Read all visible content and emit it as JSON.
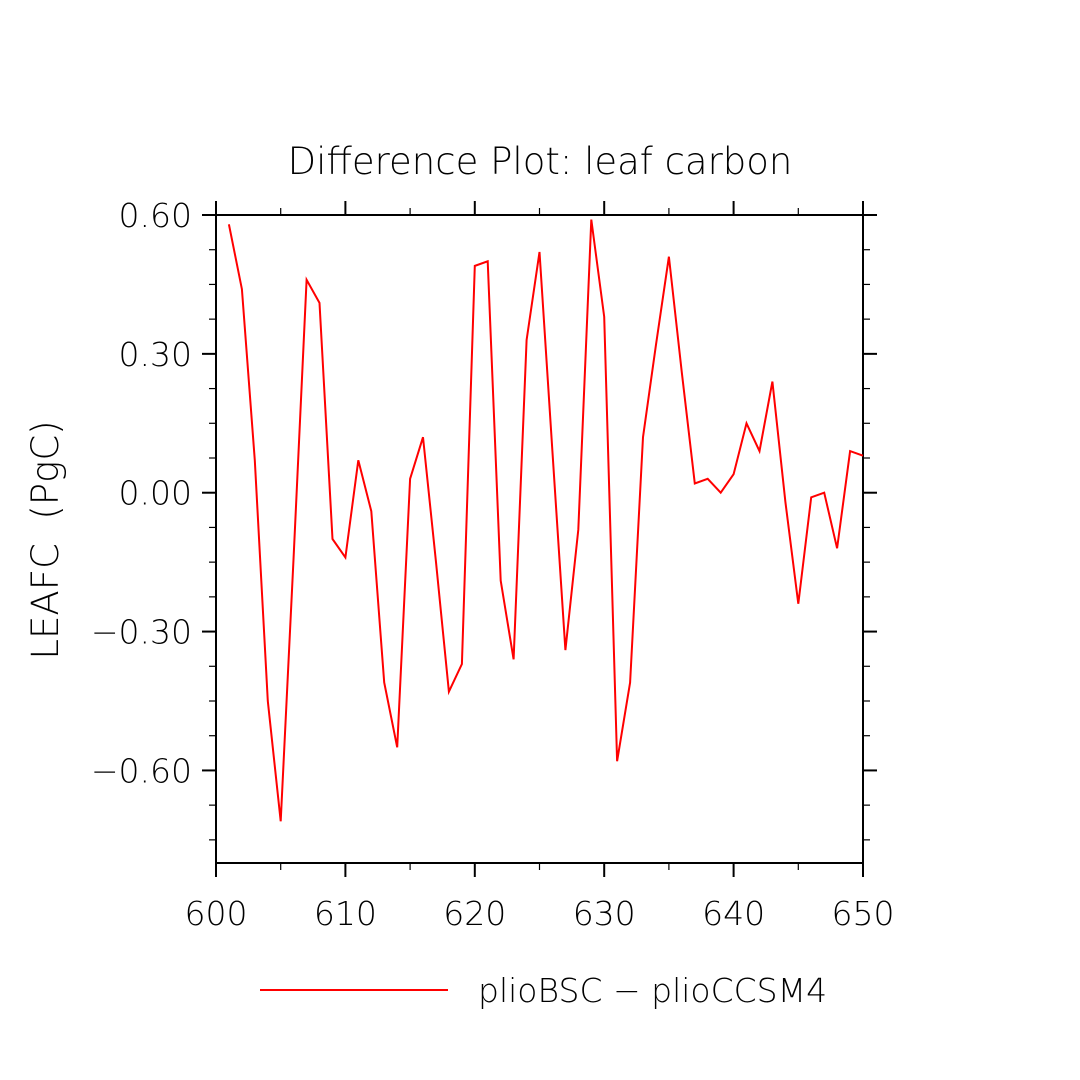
{
  "chart_data": {
    "type": "line",
    "title": "Difference Plot: leaf carbon",
    "xlabel": "",
    "ylabel": "LEAFC  (PgC)",
    "xlim": [
      600,
      650
    ],
    "ylim": [
      -0.8,
      0.6
    ],
    "x_ticks": [
      600,
      610,
      620,
      630,
      640,
      650
    ],
    "x_tick_labels": [
      "600",
      "610",
      "620",
      "630",
      "640",
      "650"
    ],
    "y_ticks": [
      0.6,
      0.3,
      0.0,
      -0.3,
      -0.6
    ],
    "y_tick_labels": [
      "0.60",
      "0.30",
      "0.00",
      "−0.30",
      "−0.60"
    ],
    "grid": false,
    "legend_position": "bottom",
    "series": [
      {
        "name": "plioBSC − plioCCSM4",
        "color": "#ff0000",
        "x": [
          601,
          602,
          603,
          604,
          605,
          606,
          607,
          608,
          609,
          610,
          611,
          612,
          613,
          614,
          615,
          616,
          617,
          618,
          619,
          620,
          621,
          622,
          623,
          624,
          625,
          626,
          627,
          628,
          629,
          630,
          631,
          632,
          633,
          634,
          635,
          636,
          637,
          638,
          639,
          640,
          641,
          642,
          643,
          644,
          645,
          646,
          647,
          648,
          649,
          650
        ],
        "y": [
          0.58,
          0.44,
          0.07,
          -0.45,
          -0.71,
          -0.14,
          0.46,
          0.41,
          -0.1,
          -0.14,
          0.07,
          -0.04,
          -0.41,
          -0.55,
          0.03,
          0.12,
          -0.15,
          -0.43,
          -0.37,
          0.49,
          0.5,
          -0.19,
          -0.36,
          0.33,
          0.52,
          0.09,
          -0.34,
          -0.08,
          0.59,
          0.38,
          -0.58,
          -0.41,
          0.12,
          0.32,
          0.51,
          0.26,
          0.02,
          0.03,
          0.0,
          0.04,
          0.15,
          0.09,
          0.24,
          -0.02,
          -0.24,
          -0.01,
          0.0,
          -0.12,
          0.09,
          0.08
        ]
      }
    ]
  }
}
